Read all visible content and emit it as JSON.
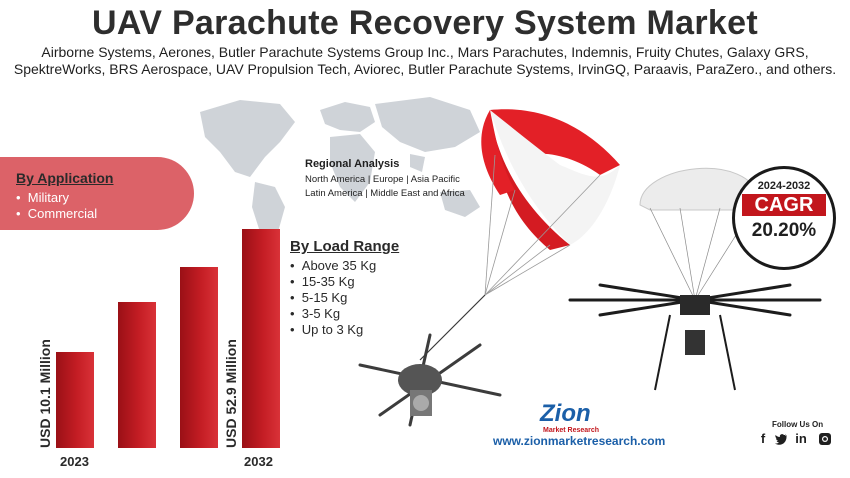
{
  "header": {
    "title": "UAV Parachute Recovery System Market",
    "subtitle_line1": "Airborne Systems, Aerones, Butler Parachute Systems Group Inc., Mars Parachutes, Indemnis, Fruity Chutes, Galaxy GRS,",
    "subtitle_line2": "SpektreWorks, BRS Aerospace, UAV Propulsion Tech, Aviorec, Butler Parachute Systems, IrvinGQ, Paraavis, ParaZero., and others."
  },
  "regional": {
    "title": "Regional Analysis",
    "line1": "North America | Europe | Asia Pacific",
    "line2": "Latin America | Middle East and Africa"
  },
  "application": {
    "title": "By Application",
    "items": [
      "Military",
      "Commercial"
    ]
  },
  "load_range": {
    "title": "By Load Range",
    "items": [
      "Above 35 Kg",
      "15-35 Kg",
      "5-15 Kg",
      "3-5 Kg",
      "Up to 3 Kg"
    ]
  },
  "market_size": {
    "start_label": "USD 10.1 Million",
    "end_label": "USD 52.9 Million",
    "start_year": "2023",
    "end_year": "2032"
  },
  "cagr": {
    "period": "2024-2032",
    "label": "CAGR",
    "value": "20.20%"
  },
  "brand": {
    "logo_main": "Zion",
    "logo_sub": "Market Research",
    "website": "www.zionmarketresearch.com",
    "follow_text": "Follow Us On",
    "social": [
      "f",
      "t",
      "in",
      "ig"
    ]
  },
  "colors": {
    "accent_red": "#c41d24",
    "application_box": "#dc6268",
    "brand_blue": "#1b5fa8"
  }
}
